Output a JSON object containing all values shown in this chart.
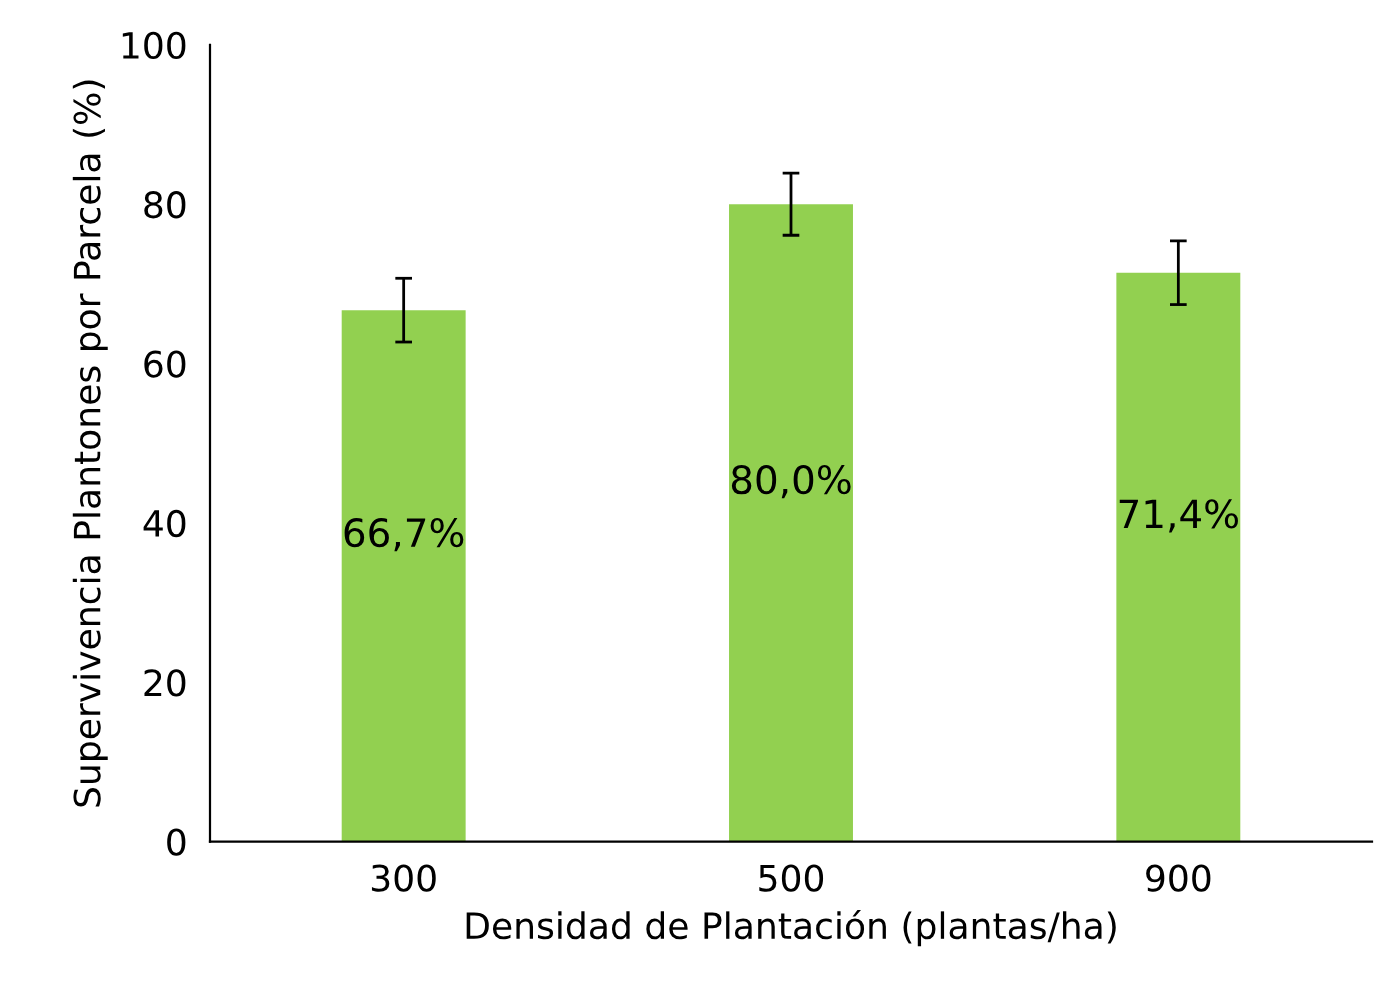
{
  "chart_data": {
    "type": "bar",
    "xlabel": "Densidad de Plantación (plantas/ha)",
    "ylabel": "Supervivencia Plantones por Parcela (%)",
    "categories": [
      "300",
      "500",
      "900"
    ],
    "values": [
      66.7,
      80.0,
      71.4
    ],
    "value_labels": [
      "66,7%",
      "80,0%",
      "71,4%"
    ],
    "errors": [
      4.0,
      3.9,
      4.0
    ],
    "color": "#92d050",
    "ylim": [
      0,
      100
    ],
    "yticks": [
      0,
      20,
      40,
      60,
      80,
      100
    ],
    "grid": false,
    "legend": false
  }
}
